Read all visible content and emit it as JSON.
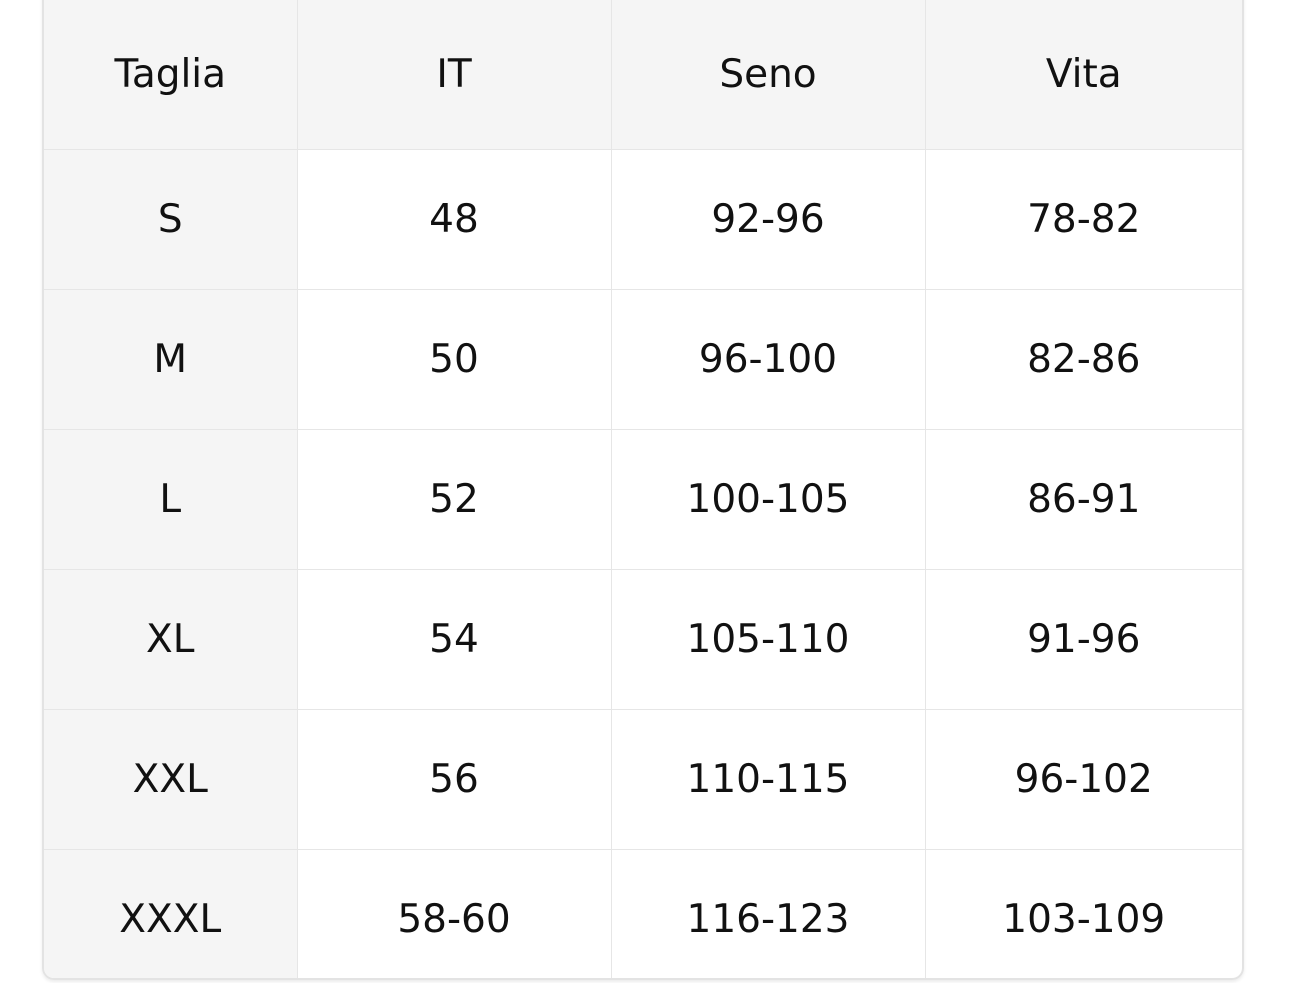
{
  "table": {
    "headers": [
      "Taglia",
      "IT",
      "Seno",
      "Vita"
    ],
    "rows": [
      [
        "S",
        "48",
        "92-96",
        "78-82"
      ],
      [
        "M",
        "50",
        "96-100",
        "82-86"
      ],
      [
        "L",
        "52",
        "100-105",
        "86-91"
      ],
      [
        "XL",
        "54",
        "105-110",
        "91-96"
      ],
      [
        "XXL",
        "56",
        "110-115",
        "96-102"
      ],
      [
        "XXXL",
        "58-60",
        "116-123",
        "103-109"
      ]
    ]
  }
}
